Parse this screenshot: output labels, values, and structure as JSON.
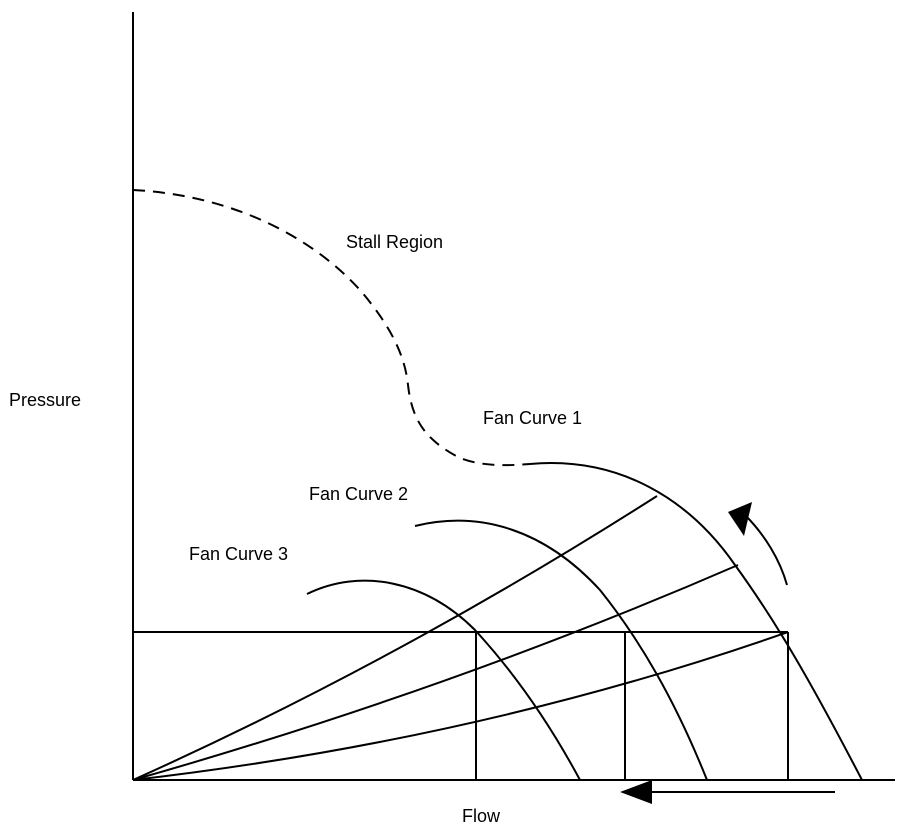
{
  "axes": {
    "x_label": "Flow",
    "y_label": "Pressure"
  },
  "region_label": "Stall Region",
  "fan_curves": [
    {
      "label": "Fan Curve 1"
    },
    {
      "label": "Fan Curve 2"
    },
    {
      "label": "Fan Curve 3"
    }
  ],
  "colors": {
    "line": "#000000",
    "background": "#ffffff"
  }
}
